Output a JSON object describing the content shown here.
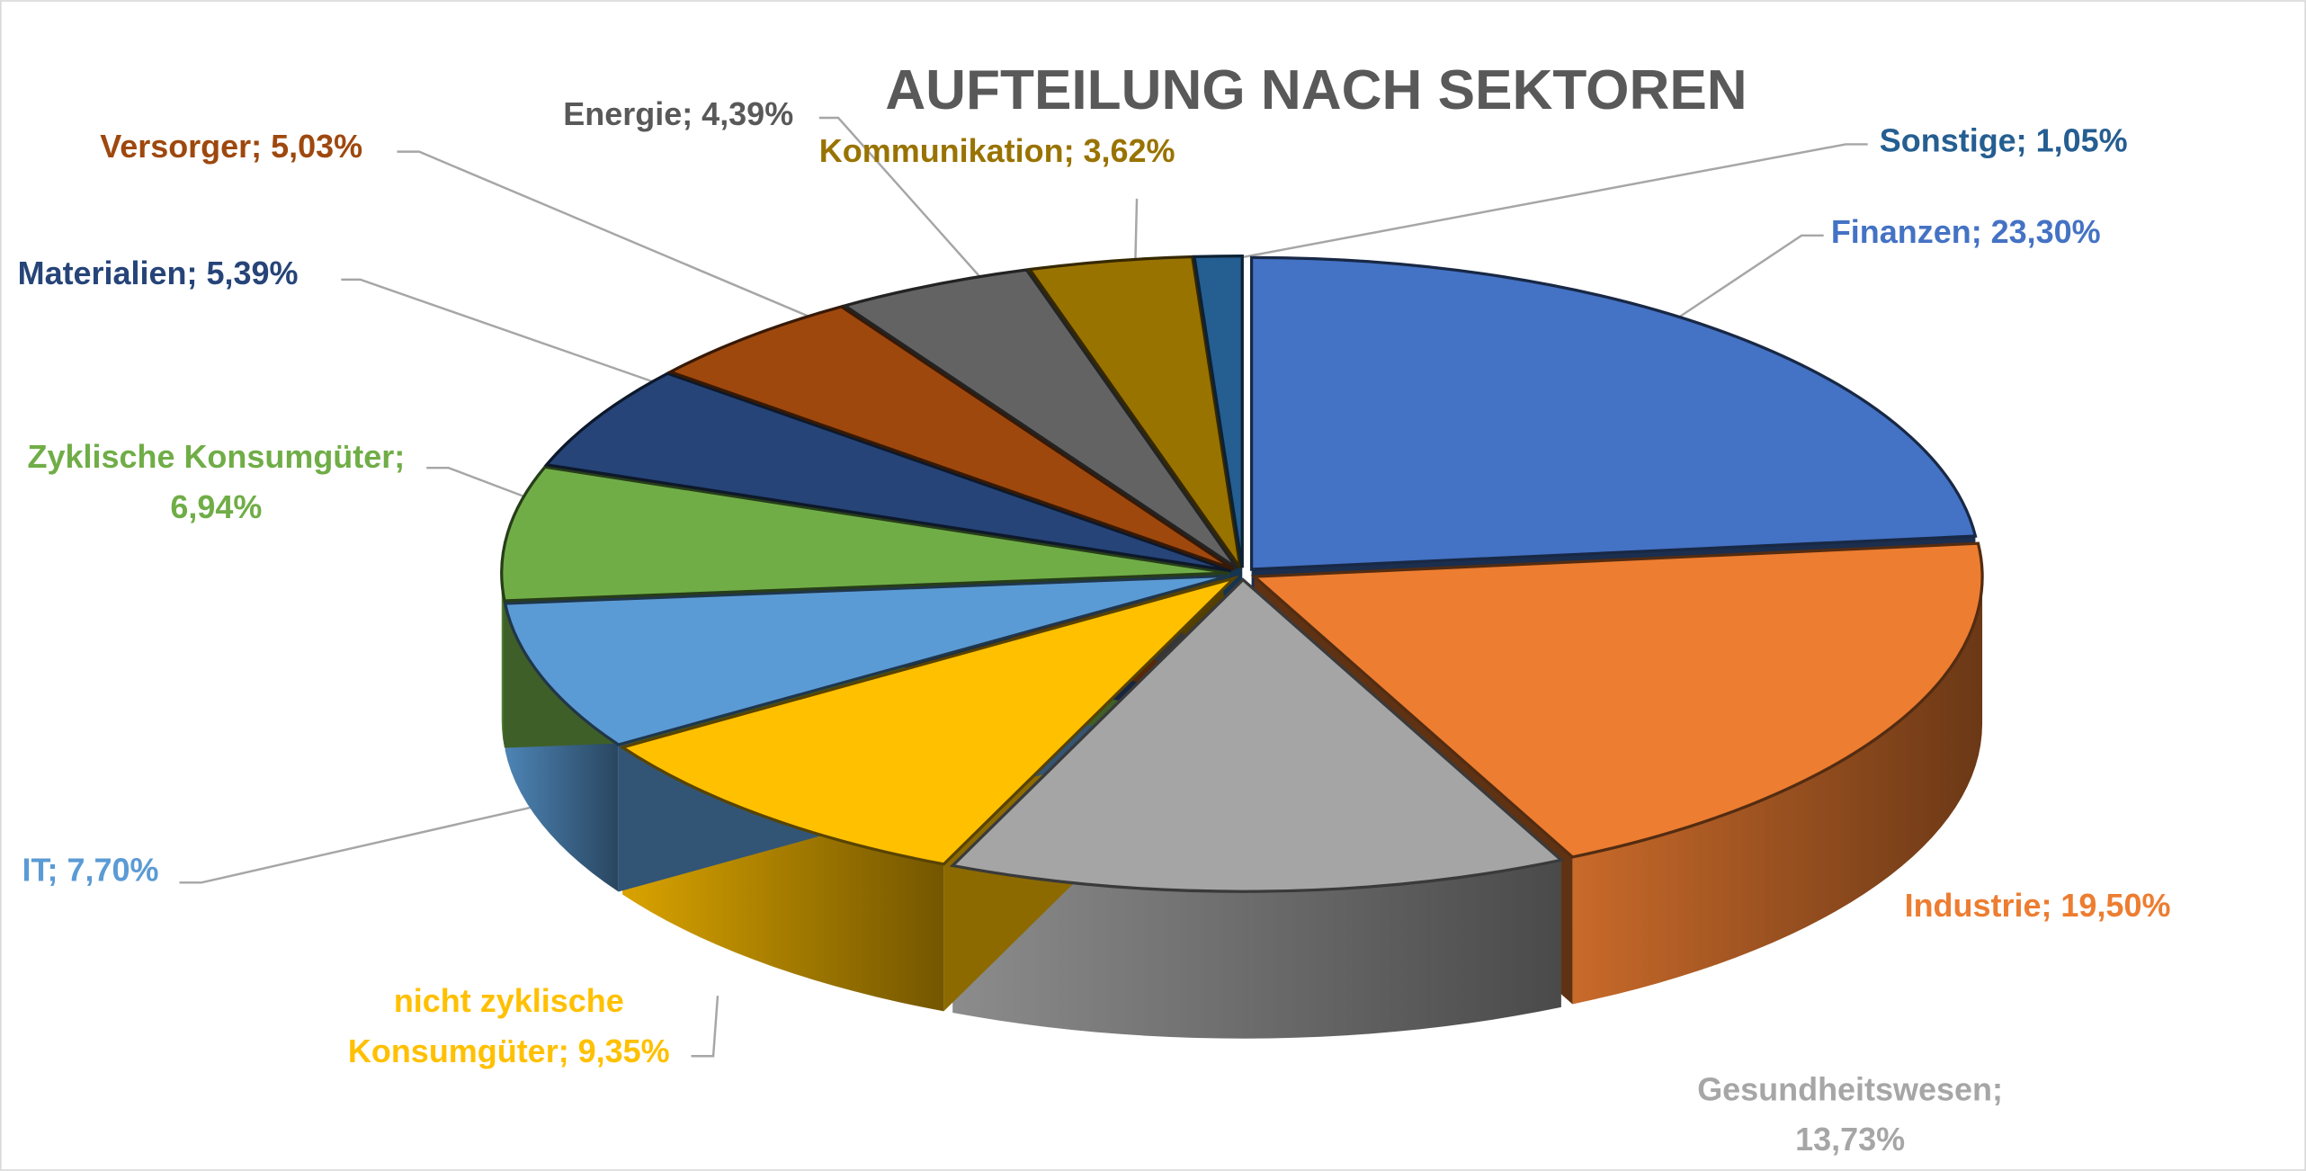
{
  "chart_data": {
    "type": "pie",
    "variant": "3d-exploded",
    "title": "AUFTEILUNG NACH SEKTOREN",
    "unit": "%",
    "start": "12 o'clock, clockwise",
    "slices": [
      {
        "label": "Finanzen",
        "value": 23.3,
        "text": "Finanzen; 23,30%",
        "color": "#4472C4"
      },
      {
        "label": "Industrie",
        "value": 19.5,
        "text": "Industrie; 19,50%",
        "color": "#ED7D31"
      },
      {
        "label": "Gesundheitswesen",
        "value": 13.73,
        "text": [
          "Gesundheitswesen;",
          "13,73%"
        ],
        "color": "#A5A5A5"
      },
      {
        "label": "nicht zyklische Konsumgüter",
        "value": 9.35,
        "text": [
          "nicht zyklische",
          "Konsumgüter; 9,35%"
        ],
        "color": "#FFC000"
      },
      {
        "label": "IT",
        "value": 7.7,
        "text": "IT; 7,70%",
        "color": "#5B9BD5"
      },
      {
        "label": "Zyklische Konsumgüter",
        "value": 6.94,
        "text": [
          "Zyklische Konsumgüter;",
          "6,94%"
        ],
        "color": "#70AD47"
      },
      {
        "label": "Materialien",
        "value": 5.39,
        "text": "Materialien; 5,39%",
        "color": "#264478"
      },
      {
        "label": "Versorger",
        "value": 5.03,
        "text": "Versorger; 5,03%",
        "color": "#9E480E"
      },
      {
        "label": "Energie",
        "value": 4.39,
        "text": "Energie; 4,39%",
        "color": "#636363"
      },
      {
        "label": "Kommunikation",
        "value": 3.62,
        "text": "Kommunikation; 3,62%",
        "color": "#997300"
      },
      {
        "label": "Sonstige",
        "value": 1.05,
        "text": "Sonstige; 1,05%",
        "color": "#255E91"
      }
    ]
  }
}
